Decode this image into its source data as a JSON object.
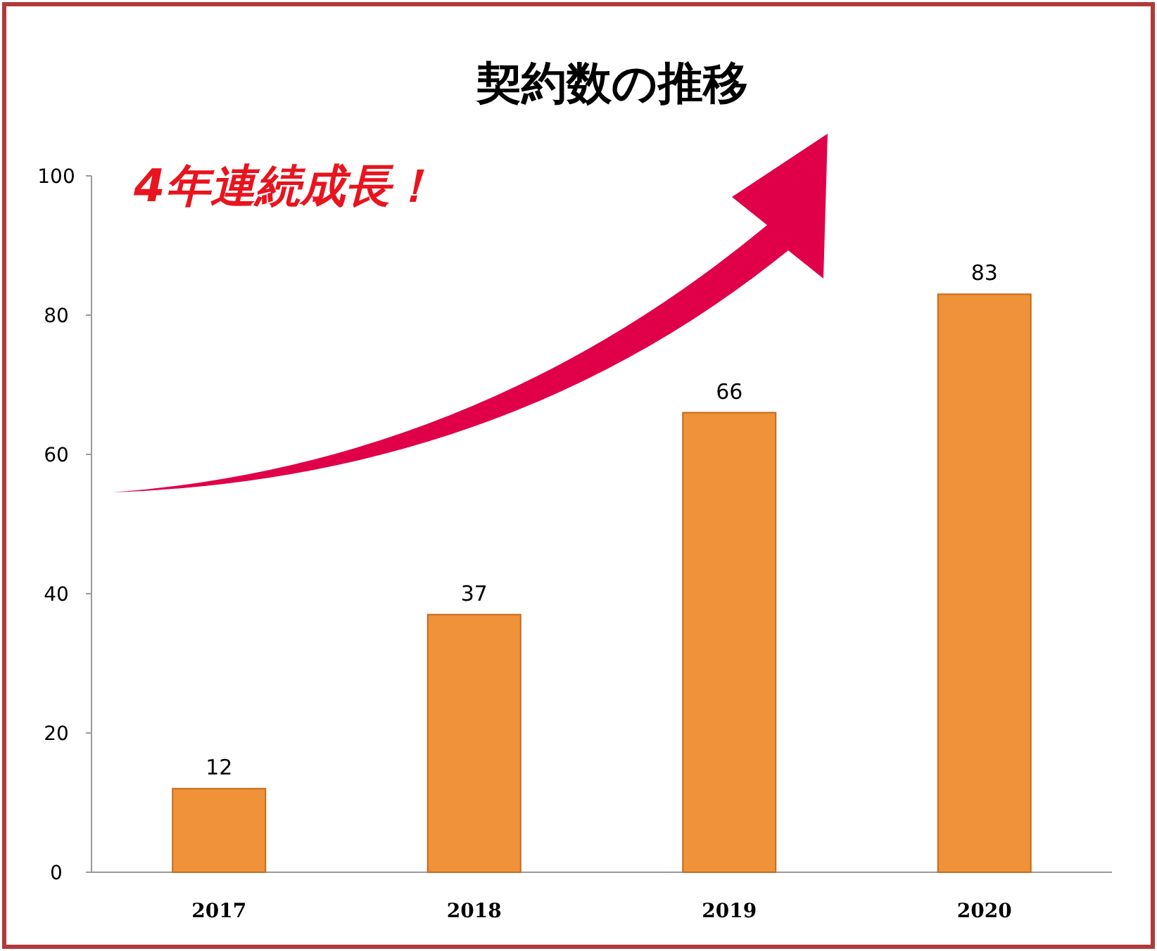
{
  "chart_data": {
    "type": "bar",
    "title": "契約数の推移",
    "categories": [
      "2017",
      "2018",
      "2019",
      "2020"
    ],
    "values": [
      12,
      37,
      66,
      83
    ],
    "color": "#f0923a",
    "ylim": [
      0,
      100
    ],
    "yticks": [
      0,
      20,
      40,
      60,
      80,
      100
    ],
    "data_labels": true,
    "annotations": [
      "4年連続成長！"
    ]
  }
}
